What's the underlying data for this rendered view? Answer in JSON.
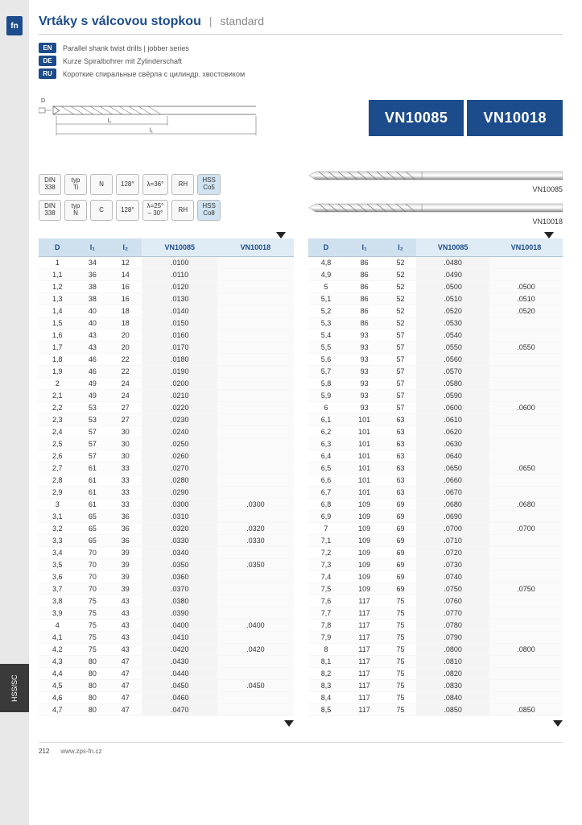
{
  "colors": {
    "brand": "#1c4c8c",
    "header_bg": "#cfe0ef",
    "header_bg_alt": "#e0ecf5",
    "sidebar": "#e8e8e8",
    "sidebar_dark": "#3a3a3a",
    "hss_chip": "#d0e3f0"
  },
  "side": {
    "fn": "fn",
    "label": "HSS/SC"
  },
  "header": {
    "title": "Vrtáky s válcovou stopkou",
    "sep": "|",
    "sub": "standard"
  },
  "langs": [
    {
      "tag": "EN",
      "text": "Parallel shank twist drills | jobber series"
    },
    {
      "tag": "DE",
      "text": "Kurze Spiralbohrer mit Zylinderschaft"
    },
    {
      "tag": "RU",
      "text": "Короткие спиральные свёрла с цилиндр. хвостовиком"
    }
  ],
  "diagram": {
    "l1": "l₁",
    "l2": "l₂",
    "d": "D"
  },
  "codes": {
    "a": "VN10085",
    "b": "VN10018"
  },
  "spec_rows": [
    {
      "chips": [
        "DIN\n338",
        "typ\nTi",
        "N",
        "128°",
        "λ=36°",
        "RH",
        "HSS\nCo5"
      ],
      "drill_label": "VN10085"
    },
    {
      "chips": [
        "DIN\n338",
        "typ\nN",
        "C",
        "128°",
        "λ=25°\n– 30°",
        "RH",
        "HSS\nCo8"
      ],
      "drill_label": "VN10018"
    }
  ],
  "table_headers": [
    "D",
    "l₁",
    "l₂",
    "VN10085",
    "VN10018"
  ],
  "table_left": [
    [
      "1",
      "34",
      "12",
      ".0100",
      ""
    ],
    [
      "1,1",
      "36",
      "14",
      ".0110",
      ""
    ],
    [
      "1,2",
      "38",
      "16",
      ".0120",
      ""
    ],
    [
      "1,3",
      "38",
      "16",
      ".0130",
      ""
    ],
    [
      "1,4",
      "40",
      "18",
      ".0140",
      ""
    ],
    [
      "1,5",
      "40",
      "18",
      ".0150",
      ""
    ],
    [
      "1,6",
      "43",
      "20",
      ".0160",
      ""
    ],
    [
      "1,7",
      "43",
      "20",
      ".0170",
      ""
    ],
    [
      "1,8",
      "46",
      "22",
      ".0180",
      ""
    ],
    [
      "1,9",
      "46",
      "22",
      ".0190",
      ""
    ],
    [
      "2",
      "49",
      "24",
      ".0200",
      ""
    ],
    [
      "2,1",
      "49",
      "24",
      ".0210",
      ""
    ],
    [
      "2,2",
      "53",
      "27",
      ".0220",
      ""
    ],
    [
      "2,3",
      "53",
      "27",
      ".0230",
      ""
    ],
    [
      "2,4",
      "57",
      "30",
      ".0240",
      ""
    ],
    [
      "2,5",
      "57",
      "30",
      ".0250",
      ""
    ],
    [
      "2,6",
      "57",
      "30",
      ".0260",
      ""
    ],
    [
      "2,7",
      "61",
      "33",
      ".0270",
      ""
    ],
    [
      "2,8",
      "61",
      "33",
      ".0280",
      ""
    ],
    [
      "2,9",
      "61",
      "33",
      ".0290",
      ""
    ],
    [
      "3",
      "61",
      "33",
      ".0300",
      ".0300"
    ],
    [
      "3,1",
      "65",
      "36",
      ".0310",
      ""
    ],
    [
      "3,2",
      "65",
      "36",
      ".0320",
      ".0320"
    ],
    [
      "3,3",
      "65",
      "36",
      ".0330",
      ".0330"
    ],
    [
      "3,4",
      "70",
      "39",
      ".0340",
      ""
    ],
    [
      "3,5",
      "70",
      "39",
      ".0350",
      ".0350"
    ],
    [
      "3,6",
      "70",
      "39",
      ".0360",
      ""
    ],
    [
      "3,7",
      "70",
      "39",
      ".0370",
      ""
    ],
    [
      "3,8",
      "75",
      "43",
      ".0380",
      ""
    ],
    [
      "3,9",
      "75",
      "43",
      ".0390",
      ""
    ],
    [
      "4",
      "75",
      "43",
      ".0400",
      ".0400"
    ],
    [
      "4,1",
      "75",
      "43",
      ".0410",
      ""
    ],
    [
      "4,2",
      "75",
      "43",
      ".0420",
      ".0420"
    ],
    [
      "4,3",
      "80",
      "47",
      ".0430",
      ""
    ],
    [
      "4,4",
      "80",
      "47",
      ".0440",
      ""
    ],
    [
      "4,5",
      "80",
      "47",
      ".0450",
      ".0450"
    ],
    [
      "4,6",
      "80",
      "47",
      ".0460",
      ""
    ],
    [
      "4,7",
      "80",
      "47",
      ".0470",
      ""
    ]
  ],
  "table_right": [
    [
      "4,8",
      "86",
      "52",
      ".0480",
      ""
    ],
    [
      "4,9",
      "86",
      "52",
      ".0490",
      ""
    ],
    [
      "5",
      "86",
      "52",
      ".0500",
      ".0500"
    ],
    [
      "5,1",
      "86",
      "52",
      ".0510",
      ".0510"
    ],
    [
      "5,2",
      "86",
      "52",
      ".0520",
      ".0520"
    ],
    [
      "5,3",
      "86",
      "52",
      ".0530",
      ""
    ],
    [
      "5,4",
      "93",
      "57",
      ".0540",
      ""
    ],
    [
      "5,5",
      "93",
      "57",
      ".0550",
      ".0550"
    ],
    [
      "5,6",
      "93",
      "57",
      ".0560",
      ""
    ],
    [
      "5,7",
      "93",
      "57",
      ".0570",
      ""
    ],
    [
      "5,8",
      "93",
      "57",
      ".0580",
      ""
    ],
    [
      "5,9",
      "93",
      "57",
      ".0590",
      ""
    ],
    [
      "6",
      "93",
      "57",
      ".0600",
      ".0600"
    ],
    [
      "6,1",
      "101",
      "63",
      ".0610",
      ""
    ],
    [
      "6,2",
      "101",
      "63",
      ".0620",
      ""
    ],
    [
      "6,3",
      "101",
      "63",
      ".0630",
      ""
    ],
    [
      "6,4",
      "101",
      "63",
      ".0640",
      ""
    ],
    [
      "6,5",
      "101",
      "63",
      ".0650",
      ".0650"
    ],
    [
      "6,6",
      "101",
      "63",
      ".0660",
      ""
    ],
    [
      "6,7",
      "101",
      "63",
      ".0670",
      ""
    ],
    [
      "6,8",
      "109",
      "69",
      ".0680",
      ".0680"
    ],
    [
      "6,9",
      "109",
      "69",
      ".0690",
      ""
    ],
    [
      "7",
      "109",
      "69",
      ".0700",
      ".0700"
    ],
    [
      "7,1",
      "109",
      "69",
      ".0710",
      ""
    ],
    [
      "7,2",
      "109",
      "69",
      ".0720",
      ""
    ],
    [
      "7,3",
      "109",
      "69",
      ".0730",
      ""
    ],
    [
      "7,4",
      "109",
      "69",
      ".0740",
      ""
    ],
    [
      "7,5",
      "109",
      "69",
      ".0750",
      ".0750"
    ],
    [
      "7,6",
      "117",
      "75",
      ".0760",
      ""
    ],
    [
      "7,7",
      "117",
      "75",
      ".0770",
      ""
    ],
    [
      "7,8",
      "117",
      "75",
      ".0780",
      ""
    ],
    [
      "7,9",
      "117",
      "75",
      ".0790",
      ""
    ],
    [
      "8",
      "117",
      "75",
      ".0800",
      ".0800"
    ],
    [
      "8,1",
      "117",
      "75",
      ".0810",
      ""
    ],
    [
      "8,2",
      "117",
      "75",
      ".0820",
      ""
    ],
    [
      "8,3",
      "117",
      "75",
      ".0830",
      ""
    ],
    [
      "8,4",
      "117",
      "75",
      ".0840",
      ""
    ],
    [
      "8,5",
      "117",
      "75",
      ".0850",
      ".0850"
    ]
  ],
  "footer": {
    "page": "212",
    "url": "www.zps-fn.cz"
  }
}
